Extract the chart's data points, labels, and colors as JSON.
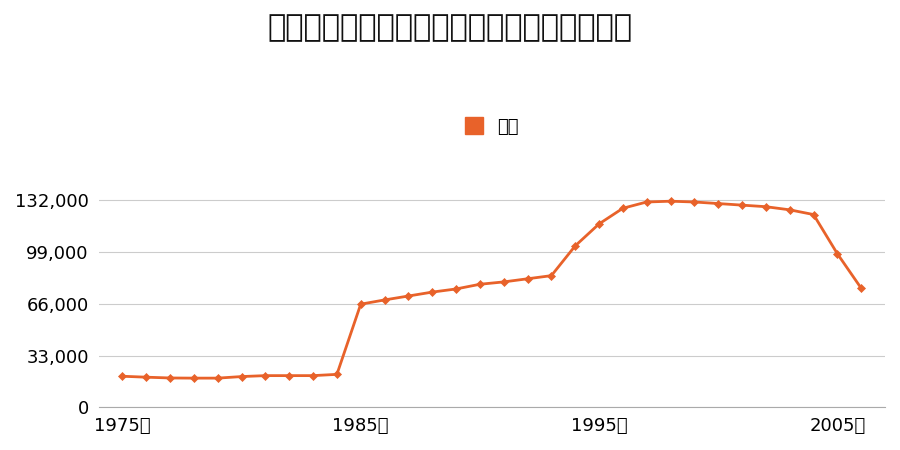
{
  "title": "石川県松任市字倉光町１１５９番の地価推移",
  "legend_label": "価格",
  "line_color": "#e8622a",
  "marker_color": "#e8622a",
  "background_color": "#ffffff",
  "grid_color": "#cccccc",
  "years": [
    1975,
    1976,
    1977,
    1978,
    1979,
    1980,
    1981,
    1982,
    1983,
    1984,
    1985,
    1986,
    1987,
    1988,
    1989,
    1990,
    1991,
    1992,
    1993,
    1994,
    1995,
    1996,
    1997,
    1998,
    1999,
    2000,
    2001,
    2002,
    2003,
    2004,
    2005,
    2006
  ],
  "prices": [
    19800,
    19200,
    18700,
    18600,
    18600,
    19600,
    20200,
    20200,
    20200,
    21000,
    65800,
    68500,
    71000,
    73500,
    75500,
    78500,
    80000,
    82000,
    84000,
    103000,
    117000,
    127000,
    131000,
    131500,
    131000,
    130000,
    129000,
    128000,
    126000,
    123000,
    98000,
    76000
  ],
  "ylim": [
    0,
    148000
  ],
  "yticks": [
    0,
    33000,
    66000,
    99000,
    132000
  ],
  "xlim_min": 1974,
  "xlim_max": 2007,
  "xtick_years": [
    1975,
    1985,
    1995,
    2005
  ],
  "title_fontsize": 22,
  "legend_fontsize": 13,
  "tick_fontsize": 13
}
